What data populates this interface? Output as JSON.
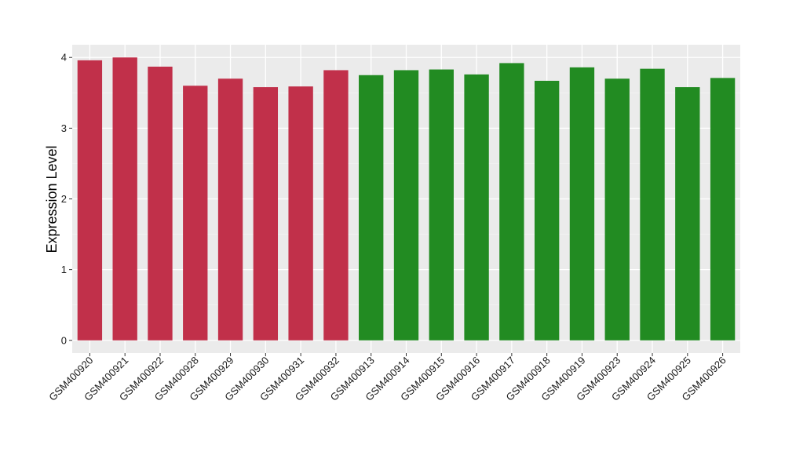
{
  "chart_data": {
    "type": "bar",
    "title": "",
    "xlabel": "",
    "ylabel": "Expression Level",
    "ylim": [
      -0.18,
      4.18
    ],
    "yticks": [
      0,
      1,
      2,
      3,
      4
    ],
    "grid": true,
    "legend": "none",
    "categories": [
      "GSM400920",
      "GSM400921",
      "GSM400922",
      "GSM400928",
      "GSM400929",
      "GSM400930",
      "GSM400931",
      "GSM400932",
      "GSM400913",
      "GSM400914",
      "GSM400915",
      "GSM400916",
      "GSM400917",
      "GSM400918",
      "GSM400919",
      "GSM400923",
      "GSM400924",
      "GSM400925",
      "GSM400926"
    ],
    "values": [
      3.96,
      4.0,
      3.87,
      3.6,
      3.7,
      3.58,
      3.59,
      3.82,
      3.75,
      3.82,
      3.83,
      3.76,
      3.92,
      3.67,
      3.86,
      3.7,
      3.84,
      3.58,
      3.71
    ],
    "bar_colors": [
      "#c1304a",
      "#c1304a",
      "#c1304a",
      "#c1304a",
      "#c1304a",
      "#c1304a",
      "#c1304a",
      "#c1304a",
      "#228b22",
      "#228b22",
      "#228b22",
      "#228b22",
      "#228b22",
      "#228b22",
      "#228b22",
      "#228b22",
      "#228b22",
      "#228b22",
      "#228b22"
    ],
    "colors": {
      "group_a": "#c1304a",
      "group_b": "#228b22",
      "panel_background": "#ebebeb",
      "grid_major": "#ffffff",
      "grid_minor": "#f5f5f5"
    }
  }
}
